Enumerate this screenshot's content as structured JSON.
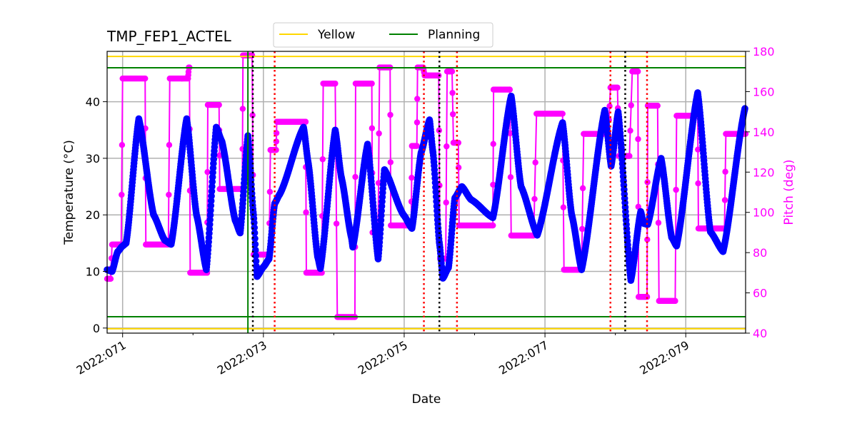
{
  "chart_data": {
    "type": "line",
    "title": "TMP_FEP1_ACTEL",
    "xlabel": "Date",
    "ylabel": "Temperature (°C)",
    "y2label": "Pitch (deg)",
    "xlim": [
      "2022:070.78",
      "2022:079.85"
    ],
    "ylim": [
      -0.9,
      48.9
    ],
    "y2lim": [
      40,
      180
    ],
    "x_ticks": [
      "2022:071",
      "2022:073",
      "2022:075",
      "2022:077",
      "2022:079"
    ],
    "y_ticks": [
      0,
      10,
      20,
      30,
      40
    ],
    "y2_ticks": [
      40,
      60,
      80,
      100,
      120,
      140,
      160,
      180
    ],
    "grid": true,
    "legend": {
      "placement": "top-center",
      "entries": [
        {
          "name": "Yellow",
          "color": "#ffd700"
        },
        {
          "name": "Planning",
          "color": "#008000"
        }
      ]
    },
    "limits": {
      "yellow": [
        48,
        0
      ],
      "planning": [
        46,
        2
      ]
    },
    "colors": {
      "temperature": "#0000ff",
      "pitch": "#ff00ff",
      "red_marks": "#ff0000",
      "black_marks": "#000000",
      "green_mark": "#008000"
    },
    "vertical_lines": {
      "green_solid": [
        "2022:072.78"
      ],
      "black_dotted": [
        "2022:072.85",
        "2022:075.50",
        "2022:078.14"
      ],
      "red_dotted": [
        "2022:073.16",
        "2022:075.28",
        "2022:075.75",
        "2022:077.93",
        "2022:078.45"
      ]
    },
    "temperature": [
      [
        "2022:070.78",
        10.3
      ],
      [
        "2022:070.85",
        10
      ],
      [
        "2022:070.93",
        13.5
      ],
      [
        "2022:071.00",
        14.5
      ],
      [
        "2022:071.05",
        15
      ],
      [
        "2022:071.23",
        37
      ],
      [
        "2022:071.44",
        20
      ],
      [
        "2022:071.60",
        15.5
      ],
      [
        "2022:071.69",
        14.8
      ],
      [
        "2022:071.91",
        37
      ],
      [
        "2022:072.05",
        20
      ],
      [
        "2022:072.19",
        10.3
      ],
      [
        "2022:072.33",
        35.5
      ],
      [
        "2022:072.41",
        33
      ],
      [
        "2022:072.60",
        19
      ],
      [
        "2022:072.67",
        16.8
      ],
      [
        "2022:072.78",
        34
      ],
      [
        "2022:072.86",
        20
      ],
      [
        "2022:072.91",
        9.1
      ],
      [
        "2022:073.00",
        10.8
      ],
      [
        "2022:073.08",
        12.2
      ],
      [
        "2022:073.16",
        22
      ],
      [
        "2022:073.23",
        23.6
      ],
      [
        "2022:073.57",
        35.5
      ],
      [
        "2022:073.64",
        29
      ],
      [
        "2022:073.77",
        12.6
      ],
      [
        "2022:073.81",
        10.5
      ],
      [
        "2022:074.02",
        35
      ],
      [
        "2022:074.11",
        26.5
      ],
      [
        "2022:074.25",
        16
      ],
      [
        "2022:074.27",
        14.3
      ],
      [
        "2022:074.48",
        32.5
      ],
      [
        "2022:074.63",
        12.2
      ],
      [
        "2022:074.72",
        28
      ],
      [
        "2022:074.99",
        20
      ],
      [
        "2022:075.11",
        17.6
      ],
      [
        "2022:075.24",
        31
      ],
      [
        "2022:075.36",
        36.8
      ],
      [
        "2022:075.41",
        31
      ],
      [
        "2022:075.50",
        15
      ],
      [
        "2022:075.55",
        8.8
      ],
      [
        "2022:075.63",
        10.7
      ],
      [
        "2022:075.72",
        23
      ],
      [
        "2022:075.82",
        25
      ],
      [
        "2022:075.95",
        22.7
      ],
      [
        "2022:076.26",
        19.5
      ],
      [
        "2022:076.52",
        41
      ],
      [
        "2022:076.66",
        25
      ],
      [
        "2022:076.89",
        16.4
      ],
      [
        "2022:077.25",
        36.3
      ],
      [
        "2022:077.38",
        20
      ],
      [
        "2022:077.52",
        10.3
      ],
      [
        "2022:077.85",
        38.5
      ],
      [
        "2022:077.94",
        28.6
      ],
      [
        "2022:078.04",
        38.2
      ],
      [
        "2022:078.22",
        8.4
      ],
      [
        "2022:078.36",
        20.6
      ],
      [
        "2022:078.40",
        18.5
      ],
      [
        "2022:078.46",
        18.3
      ],
      [
        "2022:078.65",
        30
      ],
      [
        "2022:078.80",
        16
      ],
      [
        "2022:078.87",
        14.5
      ],
      [
        "2022:079.17",
        41.6
      ],
      [
        "2022:079.35",
        17
      ],
      [
        "2022:079.53",
        13.5
      ],
      [
        "2022:079.84",
        38.8
      ]
    ],
    "pitch": [
      [
        "2022:070.78",
        "2022:070.83",
        67
      ],
      [
        "2022:070.85",
        "2022:070.98",
        84
      ],
      [
        "2022:071.00",
        "2022:071.32",
        166.5
      ],
      [
        "2022:071.33",
        "2022:071.65",
        84
      ],
      [
        "2022:071.67",
        "2022:071.93",
        166.5
      ],
      [
        "2022:071.94",
        "2022:071.95",
        172
      ],
      [
        "2022:071.96",
        "2022:072.20",
        70
      ],
      [
        "2022:072.21",
        "2022:072.37",
        153.4
      ],
      [
        "2022:072.38",
        "2022:072.70",
        111.6
      ],
      [
        "2022:072.71",
        "2022:072.84",
        178
      ],
      [
        "2022:072.86",
        "2022:073.08",
        79
      ],
      [
        "2022:073.10",
        "2022:073.18",
        131
      ],
      [
        "2022:073.19",
        "2022:073.60",
        145
      ],
      [
        "2022:073.61",
        "2022:073.83",
        70
      ],
      [
        "2022:073.85",
        "2022:074.02",
        164
      ],
      [
        "2022:074.05",
        "2022:074.30",
        48
      ],
      [
        "2022:074.31",
        "2022:074.54",
        164
      ],
      [
        "2022:074.55",
        "2022:074.63",
        90
      ],
      [
        "2022:074.65",
        "2022:074.80",
        172
      ],
      [
        "2022:074.81",
        "2022:075.10",
        93.5
      ],
      [
        "2022:075.11",
        "2022:075.18",
        133
      ],
      [
        "2022:075.19",
        "2022:075.27",
        172
      ],
      [
        "2022:075.29",
        "2022:075.49",
        168
      ],
      [
        "2022:075.51",
        "2022:075.59",
        77
      ],
      [
        "2022:075.61",
        "2022:075.68",
        170
      ],
      [
        "2022:075.70",
        "2022:075.77",
        134.6
      ],
      [
        "2022:075.78",
        "2022:076.26",
        93.5
      ],
      [
        "2022:076.27",
        "2022:076.50",
        161
      ],
      [
        "2022:076.52",
        "2022:076.84",
        88.5
      ],
      [
        "2022:076.88",
        "2022:077.25",
        149
      ],
      [
        "2022:077.27",
        "2022:077.52",
        71.5
      ],
      [
        "2022:077.55",
        "2022:077.90",
        139
      ],
      [
        "2022:077.93",
        "2022:078.03",
        162
      ],
      [
        "2022:078.05",
        "2022:078.20",
        128
      ],
      [
        "2022:078.24",
        "2022:078.32",
        170
      ],
      [
        "2022:078.33",
        "2022:078.45",
        58
      ],
      [
        "2022:078.46",
        "2022:078.60",
        153
      ],
      [
        "2022:078.62",
        "2022:078.85",
        56
      ],
      [
        "2022:078.87",
        "2022:079.17",
        148
      ],
      [
        "2022:079.18",
        "2022:079.55",
        92
      ],
      [
        "2022:079.57",
        "2022:079.85",
        139
      ]
    ]
  }
}
